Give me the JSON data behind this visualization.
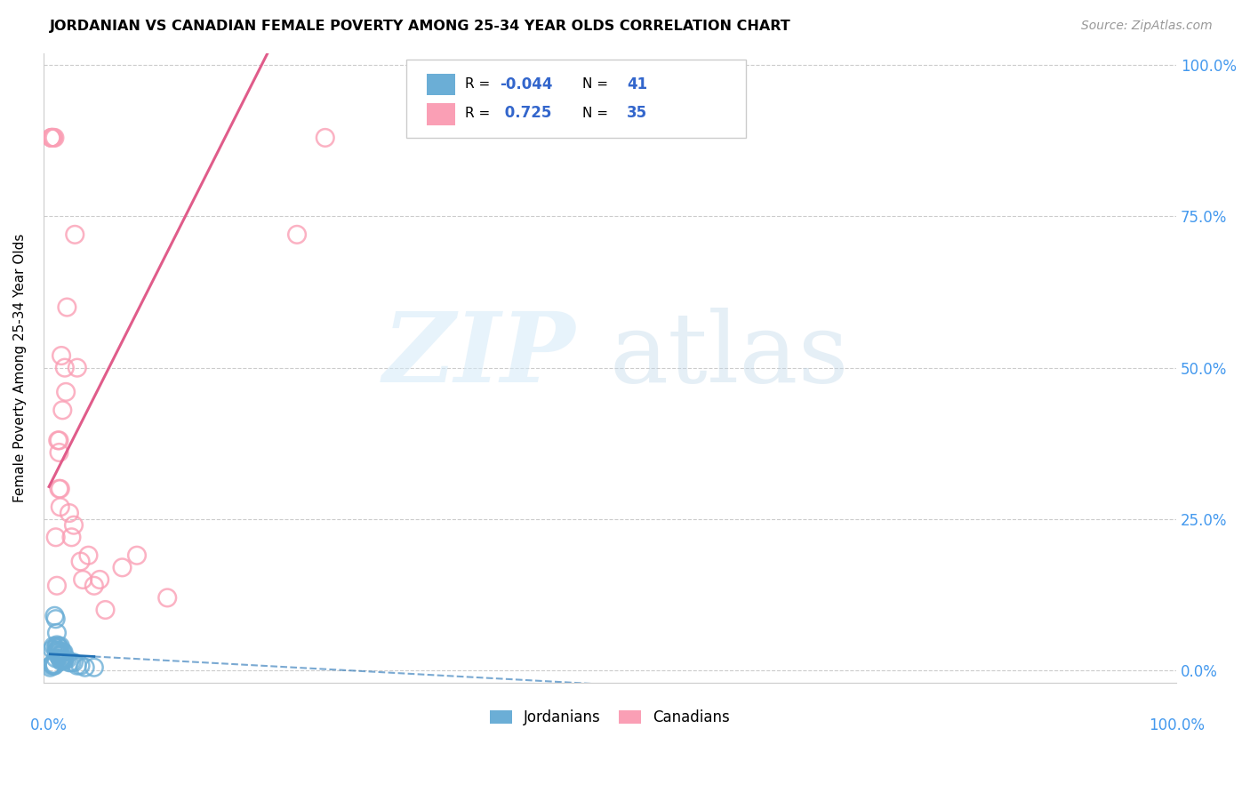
{
  "title": "JORDANIAN VS CANADIAN FEMALE POVERTY AMONG 25-34 YEAR OLDS CORRELATION CHART",
  "source": "Source: ZipAtlas.com",
  "ylabel": "Female Poverty Among 25-34 Year Olds",
  "r_jordan": "-0.044",
  "n_jordan": "41",
  "r_canada": "0.725",
  "n_canada": "35",
  "jordan_color": "#6baed6",
  "canada_color": "#fa9fb5",
  "jordan_line_color": "#2171b5",
  "canada_line_color": "#e05c8a",
  "legend_jordan": "Jordanians",
  "legend_canada": "Canadians",
  "jordan_x": [
    0.001,
    0.002,
    0.003,
    0.003,
    0.004,
    0.004,
    0.005,
    0.005,
    0.005,
    0.006,
    0.006,
    0.006,
    0.007,
    0.007,
    0.007,
    0.007,
    0.008,
    0.008,
    0.008,
    0.009,
    0.009,
    0.009,
    0.01,
    0.01,
    0.01,
    0.011,
    0.011,
    0.012,
    0.012,
    0.013,
    0.013,
    0.013,
    0.014,
    0.016,
    0.018,
    0.02,
    0.022,
    0.025,
    0.028,
    0.032,
    0.04
  ],
  "jordan_y": [
    0.005,
    0.008,
    0.035,
    0.01,
    0.008,
    0.04,
    0.008,
    0.09,
    0.01,
    0.085,
    0.038,
    0.02,
    0.042,
    0.03,
    0.062,
    0.033,
    0.025,
    0.04,
    0.033,
    0.03,
    0.038,
    0.03,
    0.04,
    0.025,
    0.018,
    0.02,
    0.015,
    0.03,
    0.018,
    0.018,
    0.03,
    0.025,
    0.018,
    0.018,
    0.013,
    0.013,
    0.013,
    0.008,
    0.008,
    0.005,
    0.005
  ],
  "canada_x": [
    0.002,
    0.002,
    0.003,
    0.003,
    0.004,
    0.005,
    0.006,
    0.007,
    0.008,
    0.009,
    0.009,
    0.009,
    0.01,
    0.01,
    0.011,
    0.012,
    0.014,
    0.015,
    0.016,
    0.018,
    0.02,
    0.022,
    0.023,
    0.025,
    0.028,
    0.03,
    0.035,
    0.04,
    0.045,
    0.05,
    0.065,
    0.078,
    0.105,
    0.22,
    0.245
  ],
  "canada_y": [
    0.88,
    0.88,
    0.88,
    0.88,
    0.88,
    0.88,
    0.22,
    0.14,
    0.38,
    0.36,
    0.38,
    0.3,
    0.3,
    0.27,
    0.52,
    0.43,
    0.5,
    0.46,
    0.6,
    0.26,
    0.22,
    0.24,
    0.72,
    0.5,
    0.18,
    0.15,
    0.19,
    0.14,
    0.15,
    0.1,
    0.17,
    0.19,
    0.12,
    0.72,
    0.88
  ],
  "xlim": [
    0,
    1.0
  ],
  "ylim": [
    0,
    1.0
  ],
  "ytick_positions": [
    0.0,
    0.25,
    0.5,
    0.75,
    1.0
  ],
  "ytick_labels": [
    "0.0%",
    "25.0%",
    "50.0%",
    "75.0%",
    "100.0%"
  ],
  "xtick_positions": [
    0.0,
    1.0
  ],
  "xtick_labels": [
    "0.0%",
    "100.0%"
  ]
}
